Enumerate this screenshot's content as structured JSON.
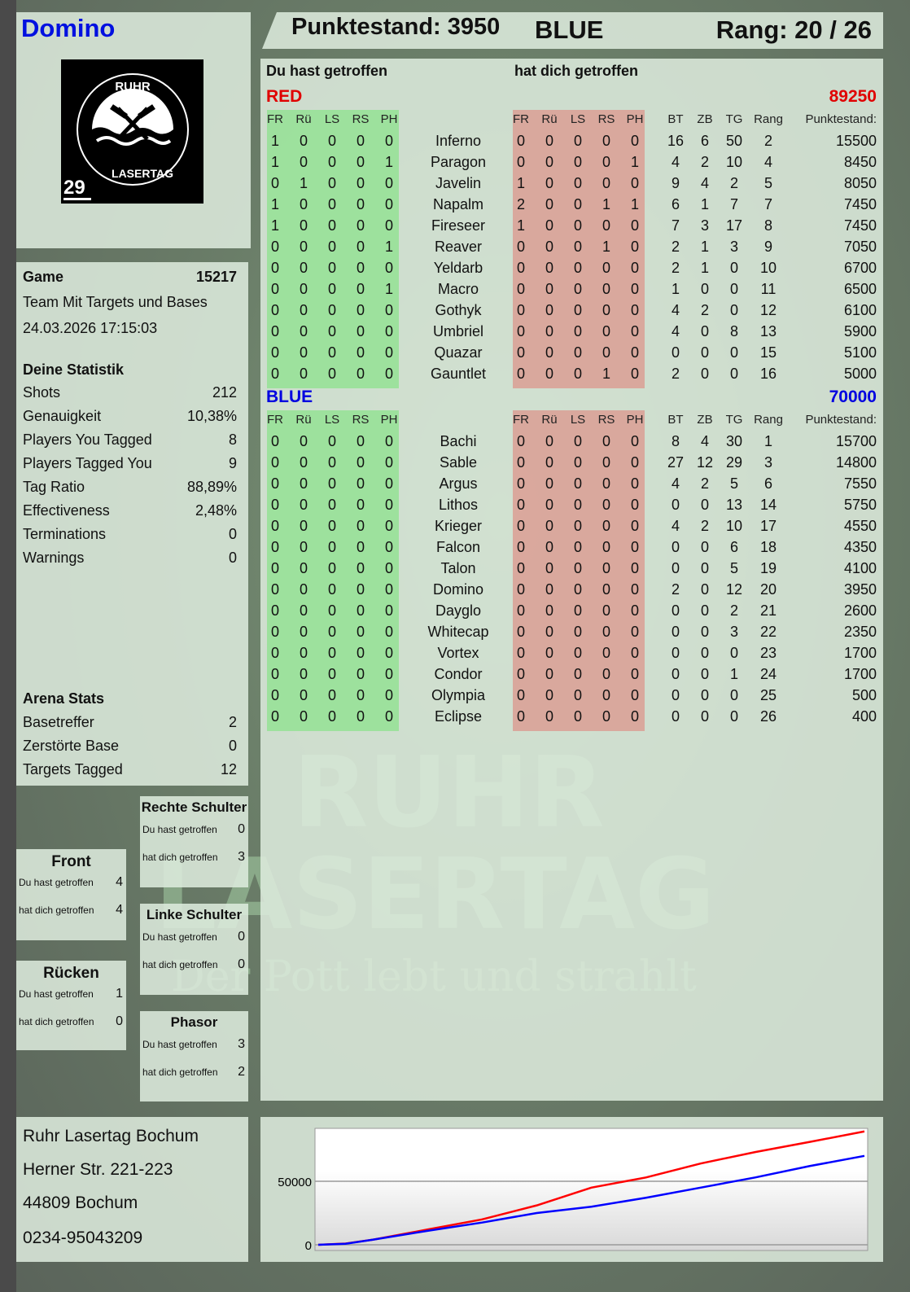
{
  "player": {
    "name": "Domino",
    "logo_text": "RUHR LASERTAG",
    "badge_number": "29"
  },
  "header": {
    "score": "Punktestand: 3950",
    "team": "BLUE",
    "rank": "Rang: 20 / 26"
  },
  "game": {
    "label": "Game",
    "id": "15217",
    "mode": "Team Mit Targets und Bases",
    "datetime": "24.03.2026 17:15:03"
  },
  "stats": {
    "title": "Deine Statistik",
    "items": [
      {
        "label": "Shots",
        "value": "212"
      },
      {
        "label": "Genauigkeit",
        "value": "10,38%"
      },
      {
        "label": "Players You Tagged",
        "value": "8"
      },
      {
        "label": "Players Tagged You",
        "value": "9"
      },
      {
        "label": "Tag Ratio",
        "value": "88,89%"
      },
      {
        "label": "Effectiveness",
        "value": "2,48%"
      },
      {
        "label": "Terminations",
        "value": "0"
      },
      {
        "label": "Warnings",
        "value": "0"
      }
    ]
  },
  "arena": {
    "title": "Arena Stats",
    "items": [
      {
        "label": "Basetreffer",
        "value": "2"
      },
      {
        "label": "Zerstörte Base",
        "value": "0"
      },
      {
        "label": "Targets Tagged",
        "value": "12"
      }
    ]
  },
  "zones": [
    {
      "title": "Rechte Schulter",
      "hit_label": "Du hast getroffen",
      "hit": "0",
      "got_label": "hat dich getroffen",
      "got": "3"
    },
    {
      "title": "Front",
      "hit_label": "Du hast getroffen",
      "hit": "4",
      "got_label": "hat dich getroffen",
      "got": "4"
    },
    {
      "title": "Linke Schulter",
      "hit_label": "Du hast getroffen",
      "hit": "0",
      "got_label": "hat dich getroffen",
      "got": "0"
    },
    {
      "title": "Rücken",
      "hit_label": "Du hast getroffen",
      "hit": "1",
      "got_label": "hat dich getroffen",
      "got": "0"
    },
    {
      "title": "Phasor",
      "hit_label": "Du hast getroffen",
      "hit": "3",
      "got_label": "hat dich getroffen",
      "got": "2"
    }
  ],
  "address": {
    "name": "Ruhr Lasertag Bochum",
    "street": "Herner Str. 221-223",
    "city": "44809 Bochum",
    "phone": "0234-95043209"
  },
  "table": {
    "you_hit_label": "Du hast getroffen",
    "hit_you_label": "hat dich getroffen",
    "columns": {
      "zones": [
        "FR",
        "Rü",
        "LS",
        "RS",
        "PH"
      ],
      "stats": [
        "BT",
        "ZB",
        "TG",
        "Rang"
      ],
      "score": "Punktestand:"
    },
    "teams": [
      {
        "name": "RED",
        "total": "89250",
        "color": "#e00000",
        "players": [
          {
            "name": "Inferno",
            "hit": [
              "1",
              "0",
              "0",
              "0",
              "0"
            ],
            "got": [
              "0",
              "0",
              "0",
              "0",
              "0"
            ],
            "bt": "16",
            "zb": "6",
            "tg": "50",
            "rang": "2",
            "score": "15500"
          },
          {
            "name": "Paragon",
            "hit": [
              "1",
              "0",
              "0",
              "0",
              "1"
            ],
            "got": [
              "0",
              "0",
              "0",
              "0",
              "1"
            ],
            "bt": "4",
            "zb": "2",
            "tg": "10",
            "rang": "4",
            "score": "8450"
          },
          {
            "name": "Javelin",
            "hit": [
              "0",
              "1",
              "0",
              "0",
              "0"
            ],
            "got": [
              "1",
              "0",
              "0",
              "0",
              "0"
            ],
            "bt": "9",
            "zb": "4",
            "tg": "2",
            "rang": "5",
            "score": "8050"
          },
          {
            "name": "Napalm",
            "hit": [
              "1",
              "0",
              "0",
              "0",
              "0"
            ],
            "got": [
              "2",
              "0",
              "0",
              "1",
              "1"
            ],
            "bt": "6",
            "zb": "1",
            "tg": "7",
            "rang": "7",
            "score": "7450"
          },
          {
            "name": "Fireseer",
            "hit": [
              "1",
              "0",
              "0",
              "0",
              "0"
            ],
            "got": [
              "1",
              "0",
              "0",
              "0",
              "0"
            ],
            "bt": "7",
            "zb": "3",
            "tg": "17",
            "rang": "8",
            "score": "7450"
          },
          {
            "name": "Reaver",
            "hit": [
              "0",
              "0",
              "0",
              "0",
              "1"
            ],
            "got": [
              "0",
              "0",
              "0",
              "1",
              "0"
            ],
            "bt": "2",
            "zb": "1",
            "tg": "3",
            "rang": "9",
            "score": "7050"
          },
          {
            "name": "Yeldarb",
            "hit": [
              "0",
              "0",
              "0",
              "0",
              "0"
            ],
            "got": [
              "0",
              "0",
              "0",
              "0",
              "0"
            ],
            "bt": "2",
            "zb": "1",
            "tg": "0",
            "rang": "10",
            "score": "6700"
          },
          {
            "name": "Macro",
            "hit": [
              "0",
              "0",
              "0",
              "0",
              "1"
            ],
            "got": [
              "0",
              "0",
              "0",
              "0",
              "0"
            ],
            "bt": "1",
            "zb": "0",
            "tg": "0",
            "rang": "11",
            "score": "6500"
          },
          {
            "name": "Gothyk",
            "hit": [
              "0",
              "0",
              "0",
              "0",
              "0"
            ],
            "got": [
              "0",
              "0",
              "0",
              "0",
              "0"
            ],
            "bt": "4",
            "zb": "2",
            "tg": "0",
            "rang": "12",
            "score": "6100"
          },
          {
            "name": "Umbriel",
            "hit": [
              "0",
              "0",
              "0",
              "0",
              "0"
            ],
            "got": [
              "0",
              "0",
              "0",
              "0",
              "0"
            ],
            "bt": "4",
            "zb": "0",
            "tg": "8",
            "rang": "13",
            "score": "5900"
          },
          {
            "name": "Quazar",
            "hit": [
              "0",
              "0",
              "0",
              "0",
              "0"
            ],
            "got": [
              "0",
              "0",
              "0",
              "0",
              "0"
            ],
            "bt": "0",
            "zb": "0",
            "tg": "0",
            "rang": "15",
            "score": "5100"
          },
          {
            "name": "Gauntlet",
            "hit": [
              "0",
              "0",
              "0",
              "0",
              "0"
            ],
            "got": [
              "0",
              "0",
              "0",
              "1",
              "0"
            ],
            "bt": "2",
            "zb": "0",
            "tg": "0",
            "rang": "16",
            "score": "5000"
          }
        ]
      },
      {
        "name": "BLUE",
        "total": "70000",
        "color": "#0000e0",
        "players": [
          {
            "name": "Bachi",
            "hit": [
              "0",
              "0",
              "0",
              "0",
              "0"
            ],
            "got": [
              "0",
              "0",
              "0",
              "0",
              "0"
            ],
            "bt": "8",
            "zb": "4",
            "tg": "30",
            "rang": "1",
            "score": "15700"
          },
          {
            "name": "Sable",
            "hit": [
              "0",
              "0",
              "0",
              "0",
              "0"
            ],
            "got": [
              "0",
              "0",
              "0",
              "0",
              "0"
            ],
            "bt": "27",
            "zb": "12",
            "tg": "29",
            "rang": "3",
            "score": "14800"
          },
          {
            "name": "Argus",
            "hit": [
              "0",
              "0",
              "0",
              "0",
              "0"
            ],
            "got": [
              "0",
              "0",
              "0",
              "0",
              "0"
            ],
            "bt": "4",
            "zb": "2",
            "tg": "5",
            "rang": "6",
            "score": "7550"
          },
          {
            "name": "Lithos",
            "hit": [
              "0",
              "0",
              "0",
              "0",
              "0"
            ],
            "got": [
              "0",
              "0",
              "0",
              "0",
              "0"
            ],
            "bt": "0",
            "zb": "0",
            "tg": "13",
            "rang": "14",
            "score": "5750"
          },
          {
            "name": "Krieger",
            "hit": [
              "0",
              "0",
              "0",
              "0",
              "0"
            ],
            "got": [
              "0",
              "0",
              "0",
              "0",
              "0"
            ],
            "bt": "4",
            "zb": "2",
            "tg": "10",
            "rang": "17",
            "score": "4550"
          },
          {
            "name": "Falcon",
            "hit": [
              "0",
              "0",
              "0",
              "0",
              "0"
            ],
            "got": [
              "0",
              "0",
              "0",
              "0",
              "0"
            ],
            "bt": "0",
            "zb": "0",
            "tg": "6",
            "rang": "18",
            "score": "4350"
          },
          {
            "name": "Talon",
            "hit": [
              "0",
              "0",
              "0",
              "0",
              "0"
            ],
            "got": [
              "0",
              "0",
              "0",
              "0",
              "0"
            ],
            "bt": "0",
            "zb": "0",
            "tg": "5",
            "rang": "19",
            "score": "4100"
          },
          {
            "name": "Domino",
            "hit": [
              "0",
              "0",
              "0",
              "0",
              "0"
            ],
            "got": [
              "0",
              "0",
              "0",
              "0",
              "0"
            ],
            "bt": "2",
            "zb": "0",
            "tg": "12",
            "rang": "20",
            "score": "3950"
          },
          {
            "name": "Dayglo",
            "hit": [
              "0",
              "0",
              "0",
              "0",
              "0"
            ],
            "got": [
              "0",
              "0",
              "0",
              "0",
              "0"
            ],
            "bt": "0",
            "zb": "0",
            "tg": "2",
            "rang": "21",
            "score": "2600"
          },
          {
            "name": "Whitecap",
            "hit": [
              "0",
              "0",
              "0",
              "0",
              "0"
            ],
            "got": [
              "0",
              "0",
              "0",
              "0",
              "0"
            ],
            "bt": "0",
            "zb": "0",
            "tg": "3",
            "rang": "22",
            "score": "2350"
          },
          {
            "name": "Vortex",
            "hit": [
              "0",
              "0",
              "0",
              "0",
              "0"
            ],
            "got": [
              "0",
              "0",
              "0",
              "0",
              "0"
            ],
            "bt": "0",
            "zb": "0",
            "tg": "0",
            "rang": "23",
            "score": "1700"
          },
          {
            "name": "Condor",
            "hit": [
              "0",
              "0",
              "0",
              "0",
              "0"
            ],
            "got": [
              "0",
              "0",
              "0",
              "0",
              "0"
            ],
            "bt": "0",
            "zb": "0",
            "tg": "1",
            "rang": "24",
            "score": "1700"
          },
          {
            "name": "Olympia",
            "hit": [
              "0",
              "0",
              "0",
              "0",
              "0"
            ],
            "got": [
              "0",
              "0",
              "0",
              "0",
              "0"
            ],
            "bt": "0",
            "zb": "0",
            "tg": "0",
            "rang": "25",
            "score": "500"
          },
          {
            "name": "Eclipse",
            "hit": [
              "0",
              "0",
              "0",
              "0",
              "0"
            ],
            "got": [
              "0",
              "0",
              "0",
              "0",
              "0"
            ],
            "bt": "0",
            "zb": "0",
            "tg": "0",
            "rang": "26",
            "score": "400"
          }
        ]
      }
    ]
  },
  "watermark": {
    "line1": "RUHR",
    "line2": "LASERTAG",
    "tagline": "Der Pott lebt und strahlt"
  },
  "chart_data": {
    "type": "line",
    "title": "",
    "xlabel": "",
    "ylabel": "",
    "ylim": [
      0,
      92000
    ],
    "yticks": [
      "0",
      "50000"
    ],
    "grid": "horizontal",
    "x": [
      0,
      0.05,
      0.1,
      0.2,
      0.3,
      0.4,
      0.5,
      0.6,
      0.7,
      0.8,
      0.9,
      1
    ],
    "series": [
      {
        "color": "#ff0000",
        "values": [
          0,
          1000,
          4000,
          12000,
          20000,
          31000,
          45000,
          53000,
          64000,
          73000,
          81000,
          89250
        ]
      },
      {
        "color": "#0000ff",
        "values": [
          0,
          800,
          4000,
          11000,
          17500,
          25000,
          30000,
          37000,
          45000,
          53000,
          62000,
          70000
        ]
      }
    ]
  }
}
